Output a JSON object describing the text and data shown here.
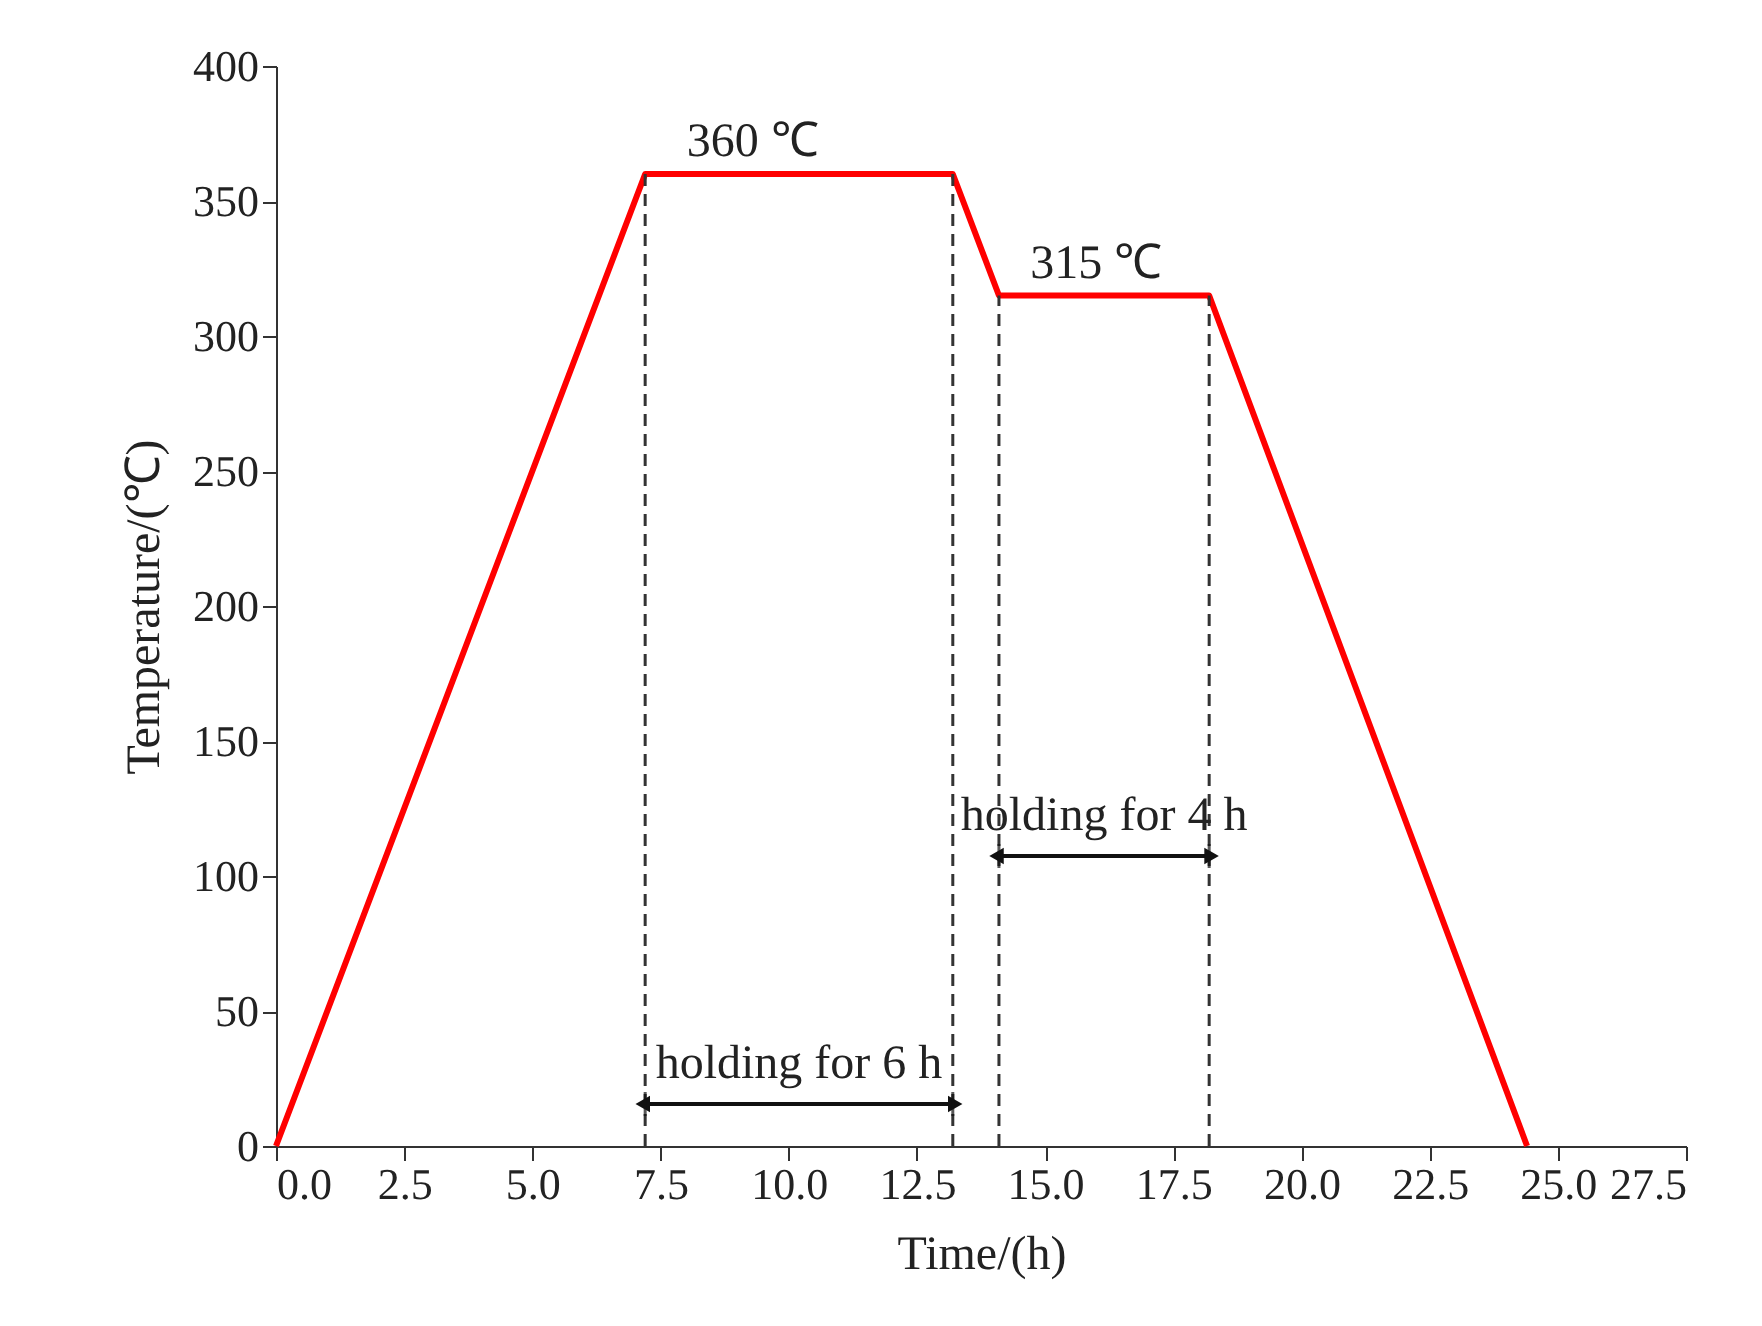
{
  "chart_data": {
    "type": "line",
    "xlabel": "Time/(h)",
    "ylabel": "Temperature/(℃)",
    "series": [
      {
        "color": "#ff0000",
        "x": [
          0,
          7.2,
          13.2,
          14.1,
          18.2,
          24.4
        ],
        "values": [
          0,
          360,
          360,
          315,
          315,
          0
        ]
      }
    ],
    "xlim": [
      0,
      27.5
    ],
    "xticks": [
      {
        "value": 0,
        "label": "0.0"
      },
      2.5,
      {
        "value": 5,
        "label": "5.0"
      },
      7.5,
      {
        "value": 10,
        "label": "10.0"
      },
      12.5,
      {
        "value": 15,
        "label": "15.0"
      },
      17.5,
      {
        "value": 20,
        "label": "20.0"
      },
      22.5,
      {
        "value": 25,
        "label": "25.0"
      },
      27.5
    ],
    "ylim": [
      0,
      400
    ],
    "yticks": [
      0,
      50,
      100,
      150,
      200,
      250,
      300,
      350,
      400
    ],
    "ref_lines": [
      {
        "axis": "x",
        "value": 7.2,
        "color": "#333333",
        "line_style": "dashed"
      },
      {
        "axis": "x",
        "value": 13.2,
        "color": "#333333",
        "line_style": "dashed"
      },
      {
        "axis": "x",
        "value": 14.1,
        "color": "#333333",
        "line_style": "dashed"
      },
      {
        "axis": "x",
        "value": 18.2,
        "color": "#333333",
        "line_style": "dashed"
      }
    ],
    "annotations": [
      {
        "text": "360 ℃",
        "x": 9.3,
        "y": 360
      },
      {
        "text": "315 ℃",
        "x": 16.0,
        "y": 315
      },
      "holding for 6 h",
      "holding for 4 h"
    ],
    "grid": false,
    "marker": "none",
    "line_style": "solid"
  }
}
